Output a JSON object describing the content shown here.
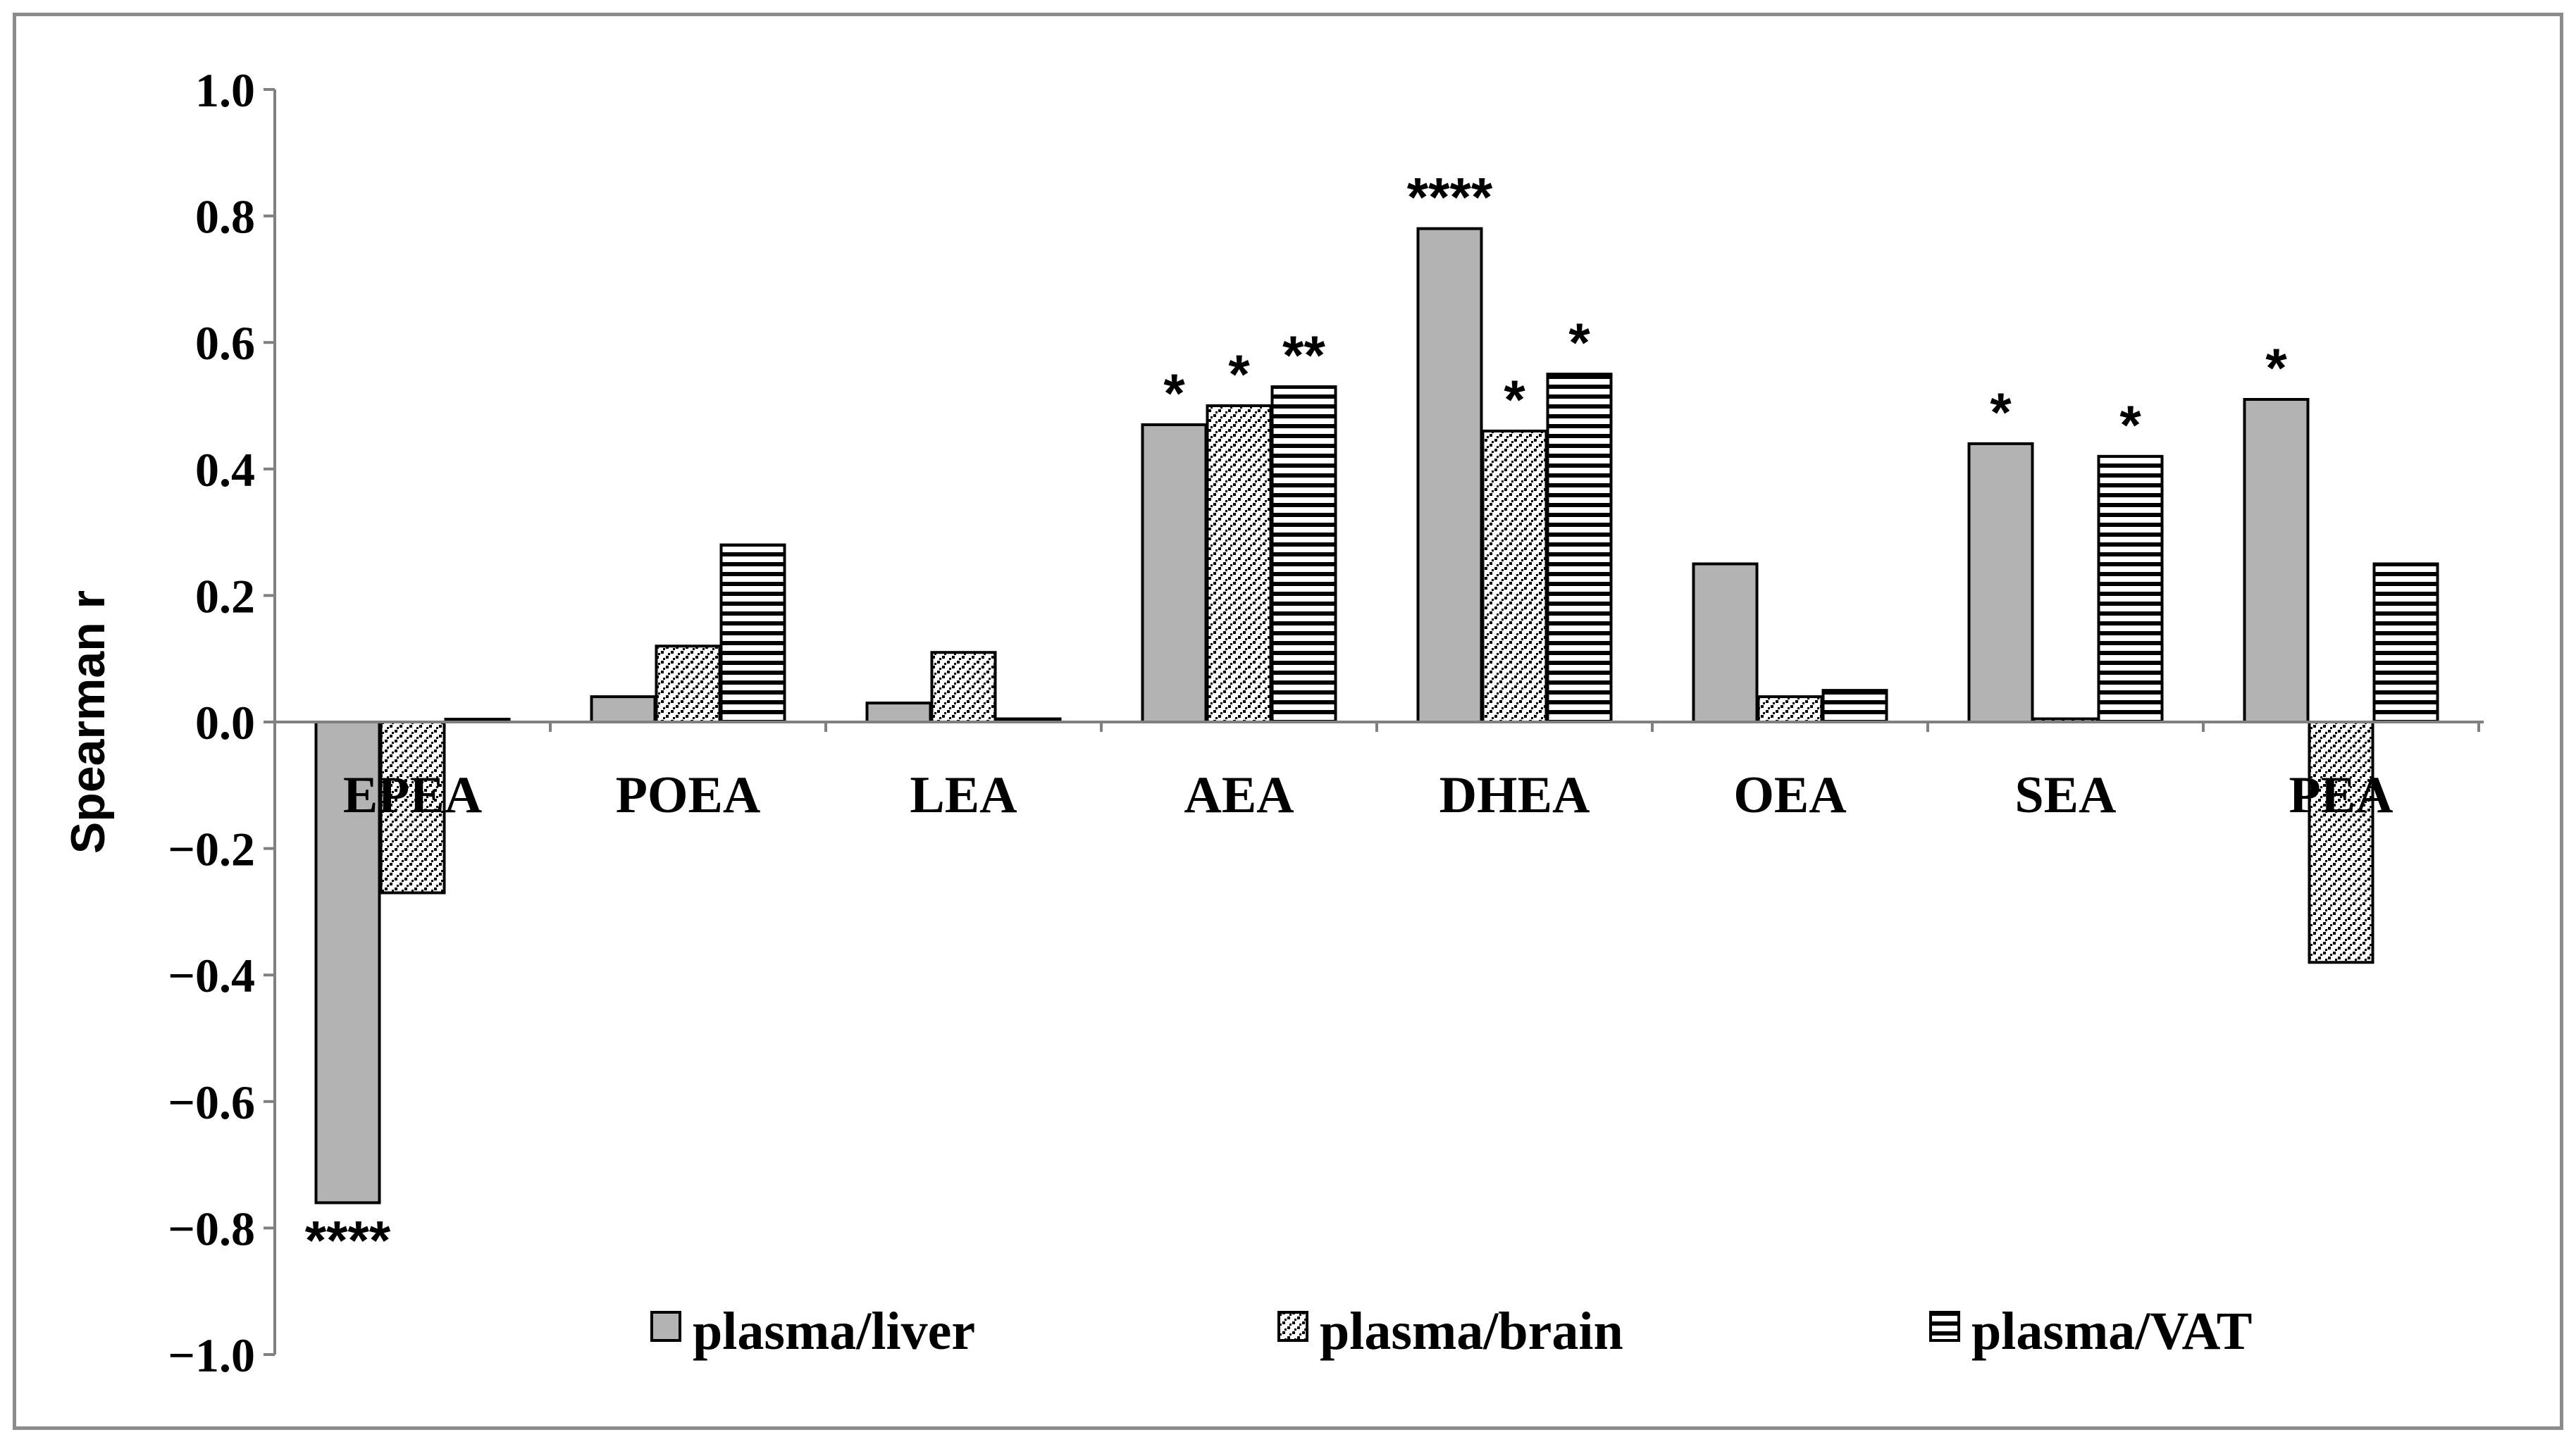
{
  "chart_data": {
    "type": "bar",
    "title": "",
    "xlabel": "",
    "ylabel": "Spearman r",
    "ylim": [
      -1.0,
      1.0
    ],
    "yticks": [
      "1.0",
      "0.8",
      "0.6",
      "0.4",
      "0.2",
      "0.0",
      "−0.2",
      "−0.4",
      "−0.6",
      "−0.8",
      "−1.0"
    ],
    "ytick_values": [
      1.0,
      0.8,
      0.6,
      0.4,
      0.2,
      0.0,
      -0.2,
      -0.4,
      -0.6,
      -0.8,
      -1.0
    ],
    "grid": false,
    "legend_position": "bottom",
    "categories": [
      "EPEA",
      "POEA",
      "LEA",
      "AEA",
      "DHEA",
      "OEA",
      "SEA",
      "PEA"
    ],
    "series": [
      {
        "name": "plasma/liver",
        "pattern": "solid-gray",
        "values": [
          -0.76,
          0.04,
          0.03,
          0.47,
          0.78,
          0.25,
          0.44,
          0.51
        ],
        "significance": [
          "****",
          "",
          "",
          "*",
          "****",
          "",
          "*",
          "*"
        ]
      },
      {
        "name": "plasma/brain",
        "pattern": "dotted",
        "values": [
          -0.27,
          0.12,
          0.11,
          0.5,
          0.46,
          0.04,
          0.005,
          -0.38
        ],
        "significance": [
          "",
          "",
          "",
          "*",
          "*",
          "",
          "",
          ""
        ]
      },
      {
        "name": "plasma/VAT",
        "pattern": "horizontal-stripes",
        "values": [
          0.0,
          0.28,
          0.005,
          0.53,
          0.55,
          0.05,
          0.42,
          0.25
        ],
        "significance": [
          "",
          "",
          "",
          "**",
          "*",
          "",
          "*",
          ""
        ]
      }
    ]
  },
  "colors": {
    "liver_fill": "#b3b3b3",
    "frame": "#8c8c8c",
    "axis": "#808080"
  }
}
